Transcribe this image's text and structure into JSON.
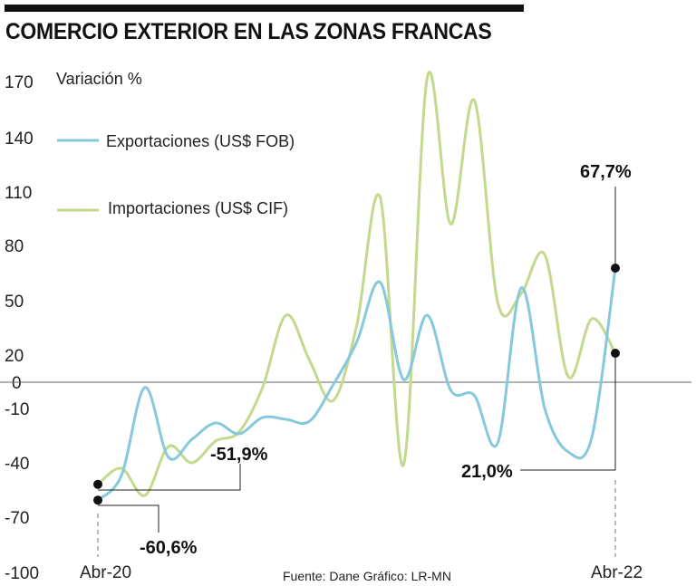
{
  "header": {
    "title": "COMERCIO EXTERIOR EN LAS ZONAS FRANCAS"
  },
  "source": "Fuente: Dane   Gráfico: LR-MN",
  "chart_data": {
    "type": "line",
    "ylabel": "Variación %",
    "ylim": [
      -100,
      170
    ],
    "yticks": [
      170,
      140,
      110,
      80,
      50,
      20,
      0,
      -10,
      -40,
      -70,
      -100
    ],
    "xtick_labels": [
      "Abr-20",
      "Abr-22"
    ],
    "colors": {
      "Exportaciones (US$ FOB)": "#86c9dc",
      "Importaciones  (US$ CIF)": "#c3d98d"
    },
    "series": [
      {
        "name": "Exportaciones (US$ FOB)",
        "values": [
          -60.6,
          -47,
          -2,
          -37,
          -27,
          -18,
          -24,
          -15,
          -16,
          -17,
          -1,
          27,
          60,
          2,
          42,
          -3,
          -5,
          -29,
          57,
          -10,
          -34,
          -26,
          67.7
        ]
      },
      {
        "name": "Importaciones  (US$ CIF)",
        "values": [
          -51.9,
          -43,
          -58,
          -31,
          -40,
          -28,
          -23,
          -2,
          42,
          16,
          -7,
          36,
          107,
          -41,
          172,
          92,
          160,
          49,
          54,
          75,
          4,
          40,
          21.0
        ]
      }
    ],
    "annotations": [
      {
        "text": "67,7%",
        "series": "Exportaciones (US$ FOB)",
        "value": 67.7
      },
      {
        "text": "-51,9%",
        "series": "Importaciones  (US$ CIF)",
        "value": -51.9
      },
      {
        "text": "21,0%",
        "series": "Importaciones  (US$ CIF)",
        "value": 21.0
      },
      {
        "text": "-60,6%",
        "series": "Exportaciones (US$ FOB)",
        "value": -60.6
      }
    ]
  }
}
